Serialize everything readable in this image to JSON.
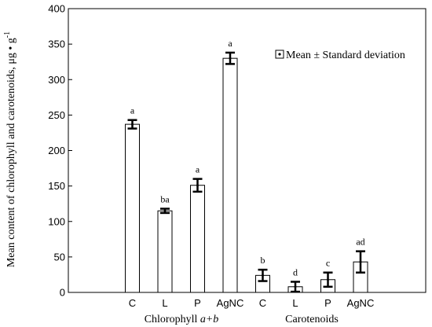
{
  "chart_data": {
    "type": "bar",
    "title": "",
    "ylabel": "Mean content of chlorophyll and carotenoids, μg • g",
    "ylabel_superscript": "-1",
    "ylim": [
      0,
      400
    ],
    "yticks": [
      0,
      50,
      100,
      150,
      200,
      250,
      300,
      350,
      400
    ],
    "grid": false,
    "legend": {
      "label": "Mean ± Standard deviation",
      "position": "top-right"
    },
    "groups": [
      {
        "label_plain": "Chlorophyll ",
        "label_italic": "a+b"
      },
      {
        "label_plain": "Carotenoids",
        "label_italic": ""
      }
    ],
    "bars": [
      {
        "group": 0,
        "category": "C",
        "value": 237,
        "sd": 6,
        "letter": "a"
      },
      {
        "group": 0,
        "category": "L",
        "value": 115,
        "sd": 3,
        "letter": "ba"
      },
      {
        "group": 0,
        "category": "P",
        "value": 151,
        "sd": 9,
        "letter": "a"
      },
      {
        "group": 0,
        "category": "AgNC",
        "value": 330,
        "sd": 8,
        "letter": "a"
      },
      {
        "group": 1,
        "category": "C",
        "value": 24,
        "sd": 8,
        "letter": "b"
      },
      {
        "group": 1,
        "category": "L",
        "value": 8,
        "sd": 7,
        "letter": "d"
      },
      {
        "group": 1,
        "category": "P",
        "value": 18,
        "sd": 10,
        "letter": "c"
      },
      {
        "group": 1,
        "category": "AgNC",
        "value": 43,
        "sd": 15,
        "letter": "ad"
      }
    ]
  }
}
